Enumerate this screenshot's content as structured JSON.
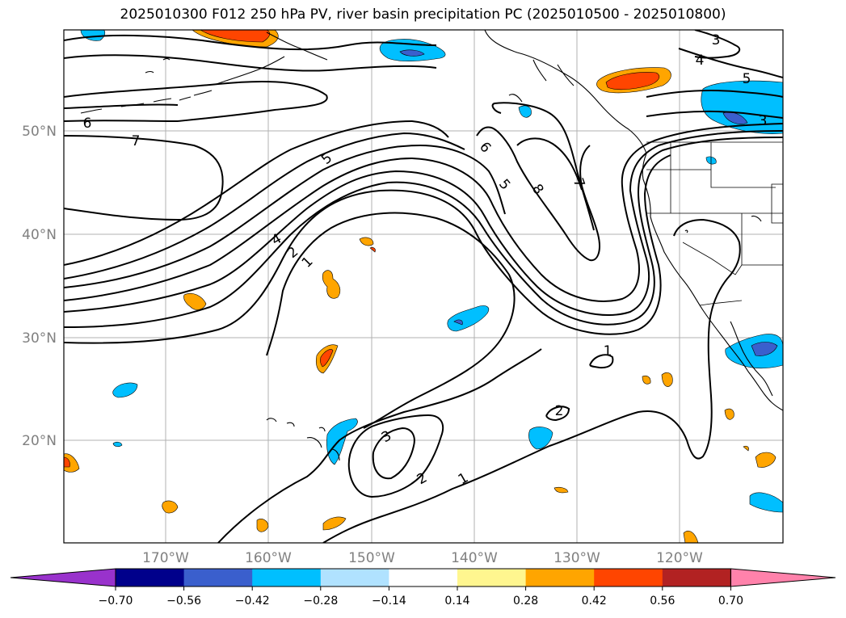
{
  "title": "2025010300 F012 250 hPa PV, river basin precipitation PC (2025010500 - 2025010800)",
  "lat_labels": [
    "50°N",
    "40°N",
    "30°N",
    "20°N"
  ],
  "lon_labels": [
    "170°W",
    "160°W",
    "150°W",
    "140°W",
    "130°W",
    "120°W"
  ],
  "contour_labels": [
    "3",
    "4",
    "5",
    "3",
    "6",
    "7",
    "5",
    "4",
    "2",
    "1",
    "6",
    "5",
    "8",
    "7",
    "1",
    "2",
    "3",
    "2",
    "1"
  ],
  "colorbar": {
    "tick_labels": [
      "−0.70",
      "−0.56",
      "−0.42",
      "−0.28",
      "−0.14",
      "0.14",
      "0.28",
      "0.42",
      "0.56",
      "0.70"
    ],
    "colors": [
      "#9932cc",
      "#00008b",
      "#3a5fcd",
      "#00bfff",
      "#b0e2ff",
      "#ffffff",
      "#fff68f",
      "#ffa500",
      "#ff4500",
      "#b22222",
      "#ff82ab"
    ]
  }
}
